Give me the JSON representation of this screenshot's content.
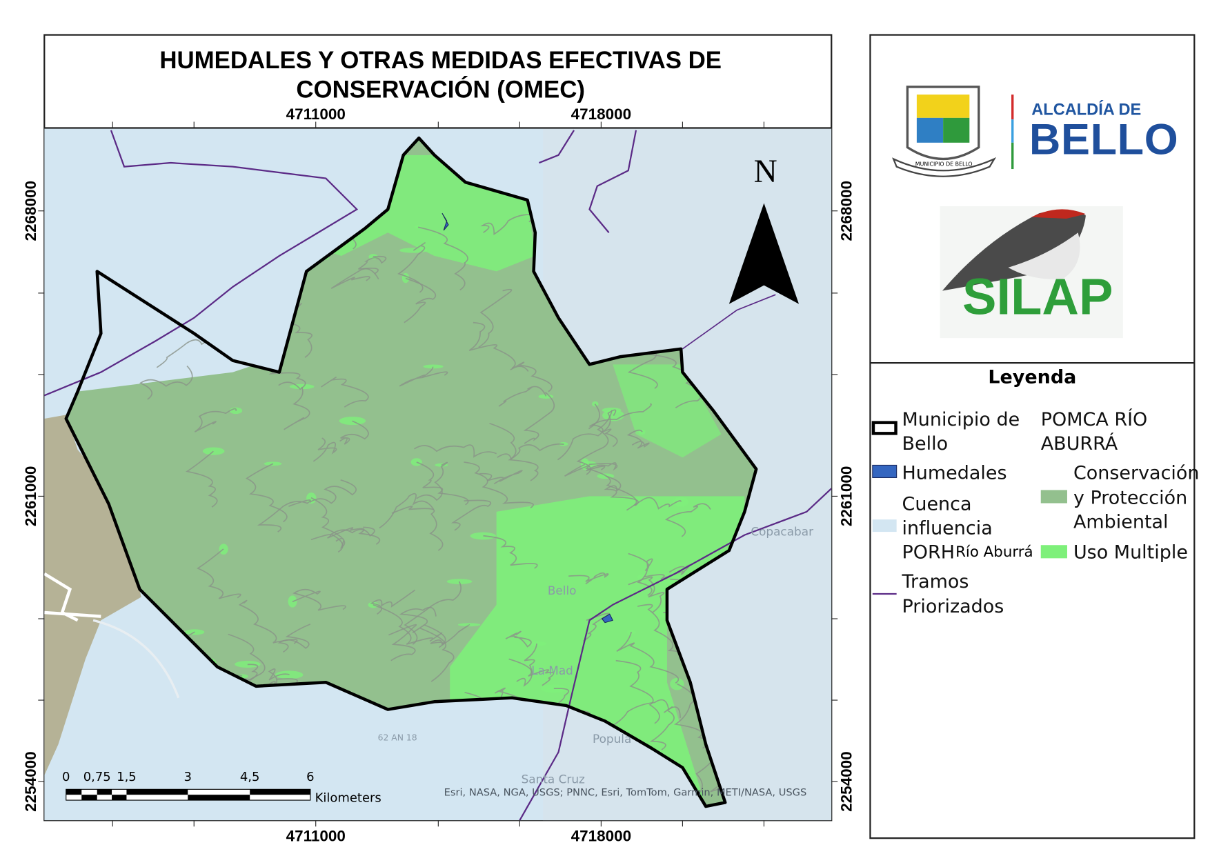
{
  "title_lines": [
    "HUMEDALES Y OTRAS MEDIDAS EFECTIVAS DE",
    "CONSERVACIÓN (OMEC)"
  ],
  "map": {
    "grid_labels": {
      "top": [
        "4711000",
        "4718000"
      ],
      "bottom": [
        "4711000",
        "4718000"
      ],
      "left": [
        "2268000",
        "2261000",
        "2254000"
      ],
      "right": [
        "2268000",
        "2261000",
        "2254000"
      ]
    },
    "north_label": "N",
    "scale_bar": {
      "ticks": [
        "0",
        "0,75",
        "1,5",
        "3",
        "4,5",
        "6"
      ],
      "unit": "Kilometers"
    },
    "attribution": "Esri, NASA, NGA, USGS; PNNC, Esri, TomTom, Garmin, METI/NASA, USGS",
    "place_labels": [
      "Copacabar",
      "Bello",
      "Popula",
      "Santa Cruz",
      "La Mad",
      "62 AN 18"
    ]
  },
  "logos": {
    "shield_caption": "MUNICIPIO DE BELLO",
    "alcaldia": [
      "ALCALDÍA DE",
      "BELLO"
    ],
    "silap": "SILAP"
  },
  "legend": {
    "title": "Leyenda",
    "municipio": [
      "Municipio de",
      "Bello"
    ],
    "humedales": "Humedales",
    "cuenca": [
      "Cuenca",
      "influencia",
      "PORH"
    ],
    "cuenca_suffix": "Río Aburrá",
    "tramos": [
      "Tramos",
      "Priorizados"
    ],
    "pomca_title": [
      "POMCA RÍO",
      "ABURRÁ"
    ],
    "conservacion": [
      "Conservación",
      "y Protección",
      "Ambiental"
    ],
    "uso_multiple": "Uso Multiple"
  }
}
